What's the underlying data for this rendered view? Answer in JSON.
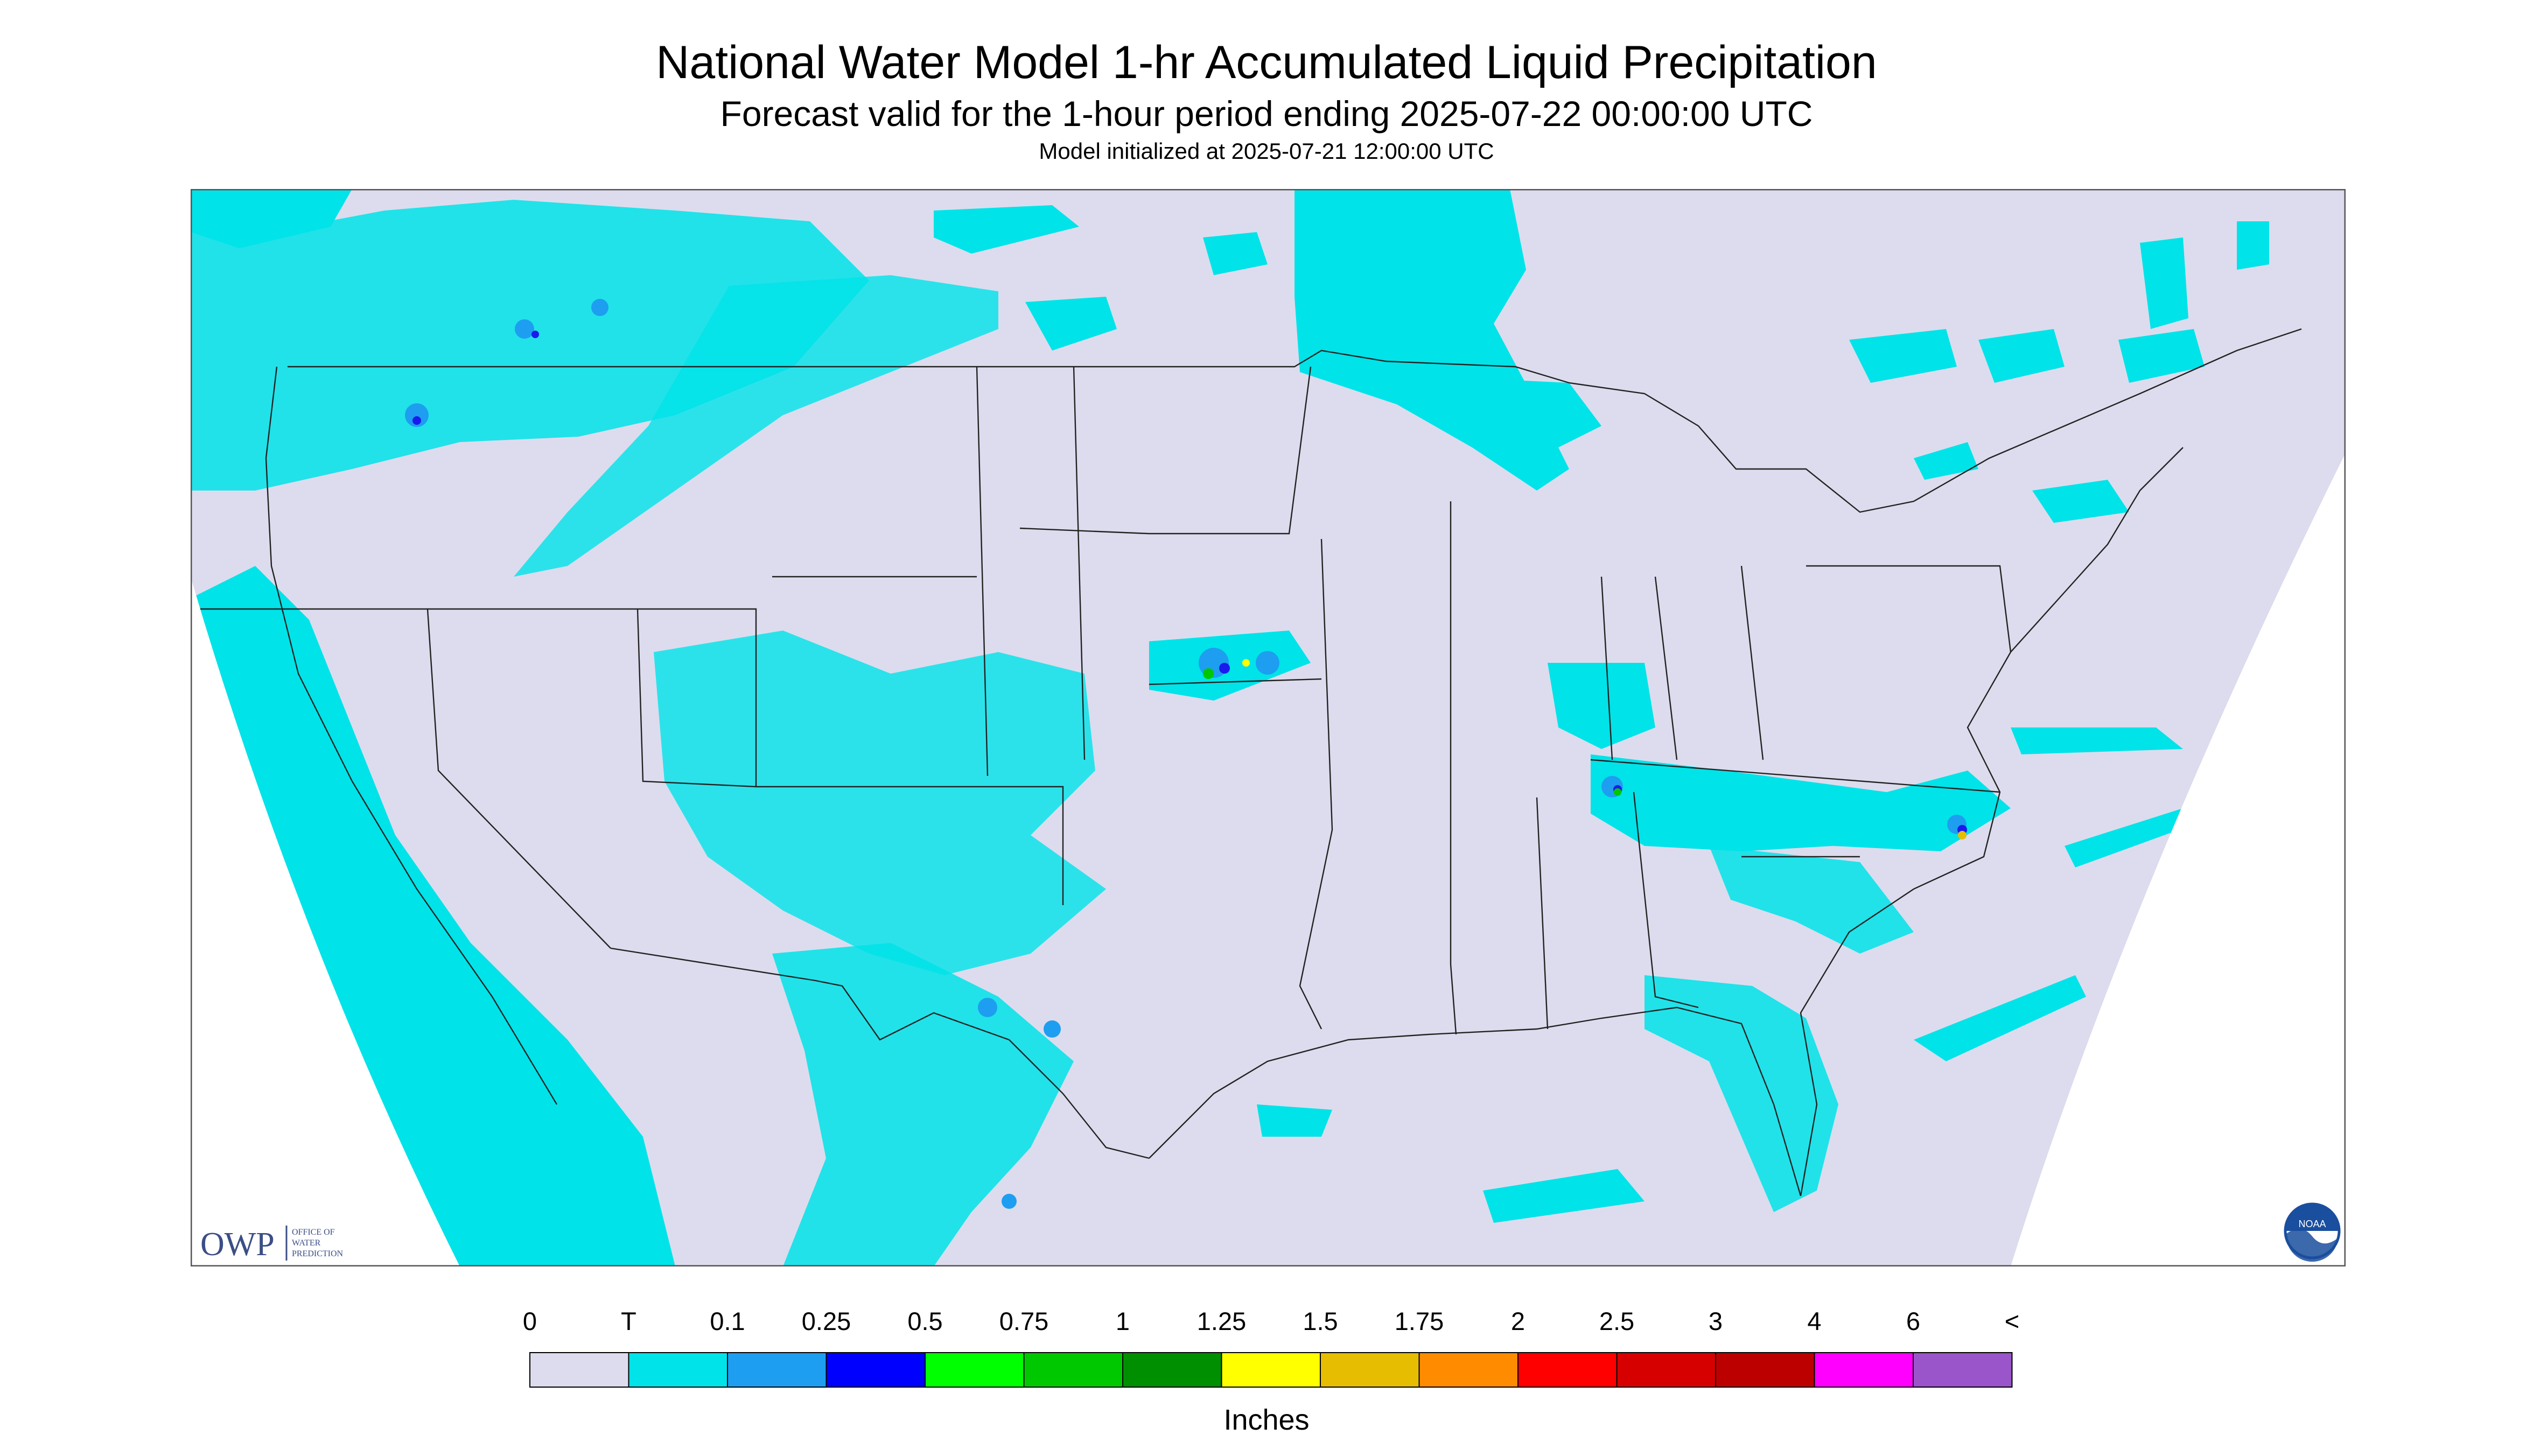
{
  "header": {
    "title": "National Water Model 1-hr Accumulated Liquid Precipitation",
    "subtitle": "Forecast valid for the 1-hour period ending 2025-07-22 00:00:00 UTC",
    "init_line": "Model initialized at 2025-07-21 12:00:00 UTC"
  },
  "map": {
    "background_color": "#dcdcee",
    "projection_mask_color": "#ffffff",
    "boundary_color": "#222222",
    "precip_light_color": "#00e3e8",
    "precip_mid_color": "#1e9ef0",
    "precip_heavy_color": "#1a1aee"
  },
  "logos": {
    "owp": {
      "mark": "OWP",
      "text": [
        "OFFICE OF",
        "WATER",
        "PREDICTION"
      ],
      "color": "#3b4e86"
    },
    "noaa": {
      "mark": "NOAA",
      "color": "#1a4e9e"
    }
  },
  "legend": {
    "units": "Inches",
    "ticks": [
      "0",
      "T",
      "0.1",
      "0.25",
      "0.5",
      "0.75",
      "1",
      "1.25",
      "1.5",
      "1.75",
      "2",
      "2.5",
      "3",
      "4",
      "6",
      "<"
    ],
    "colors": [
      "#dcdcee",
      "#00e3e8",
      "#1e9ef0",
      "#0000ff",
      "#00ff00",
      "#00c800",
      "#008f00",
      "#ffff00",
      "#e6bd00",
      "#ff8c00",
      "#ff0000",
      "#d70000",
      "#bc0000",
      "#ff00ff",
      "#9955c9"
    ]
  }
}
